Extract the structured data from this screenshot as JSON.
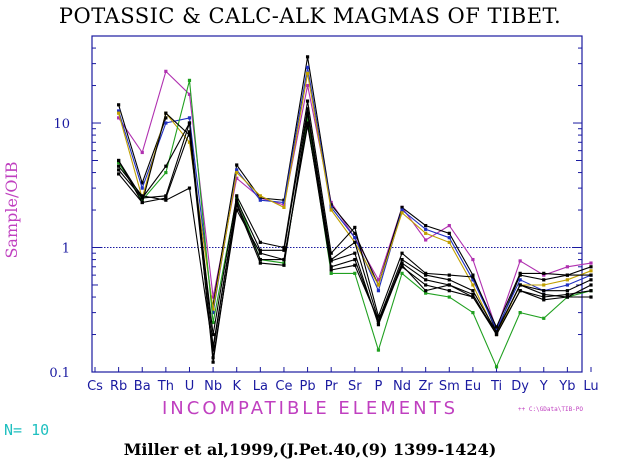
{
  "title": "POTASSIC & CALC-ALK MAGMAS OF TIBET.",
  "citation": "Miller et al,1999,(J.Pet.40,(9) 1399-1424)",
  "count": {
    "label": "N=",
    "value": "10"
  },
  "file_path": "++ C:\\GData\\TIB-PO",
  "colors": {
    "axis": "#1a1aa0",
    "label": "#c040c0",
    "count": "#20c0c0"
  },
  "chart_data": {
    "type": "line",
    "title": "POTASSIC & CALC-ALK MAGMAS OF TIBET.",
    "xlabel": "INCOMPATIBLE ELEMENTS",
    "ylabel": "Sample/OIB",
    "yscale": "log",
    "ylim": [
      0.1,
      50
    ],
    "yticks": [
      0.1,
      1,
      10
    ],
    "ytick_labels": [
      "0.1",
      "1",
      "10"
    ],
    "reference_line": 1,
    "categories": [
      "Cs",
      "Rb",
      "Ba",
      "Th",
      "U",
      "Nb",
      "K",
      "La",
      "Ce",
      "Pb",
      "Pr",
      "Sr",
      "P",
      "Nd",
      "Zr",
      "Sm",
      "Eu",
      "Ti",
      "Dy",
      "Y",
      "Yb",
      "Lu"
    ],
    "series": [
      {
        "color": "#b030b0",
        "values": [
          null,
          11,
          5.8,
          26,
          17,
          0.4,
          3.6,
          2.5,
          2.2,
          20,
          2.3,
          1.2,
          0.55,
          2.1,
          1.15,
          1.5,
          0.8,
          0.22,
          0.78,
          0.6,
          0.7,
          0.75
        ]
      },
      {
        "color": "#000000",
        "values": [
          null,
          14,
          3.3,
          11,
          null,
          0.35,
          4.6,
          2.5,
          2.4,
          34,
          2.2,
          1.3,
          0.5,
          2.1,
          1.5,
          1.3,
          0.6,
          0.21,
          0.6,
          0.55,
          0.6,
          0.7
        ]
      },
      {
        "color": "#2030c0",
        "values": [
          null,
          12.5,
          3,
          10,
          11,
          0.3,
          4.2,
          2.4,
          2.3,
          28,
          2.1,
          1.2,
          0.45,
          2.0,
          1.4,
          1.2,
          0.55,
          0.22,
          0.55,
          0.45,
          0.5,
          0.6
        ]
      },
      {
        "color": "#c0a000",
        "values": [
          null,
          12,
          2.5,
          12,
          7,
          0.32,
          4.0,
          2.6,
          2.1,
          25,
          2.0,
          1.1,
          0.5,
          1.9,
          1.3,
          1.1,
          0.5,
          0.2,
          0.5,
          0.5,
          0.55,
          0.65
        ]
      },
      {
        "color": "#20a020",
        "values": [
          null,
          4.8,
          2.4,
          4,
          22,
          0.25,
          2.5,
          0.8,
          0.75,
          11,
          0.62,
          0.62,
          0.15,
          0.62,
          0.43,
          0.4,
          0.3,
          0.11,
          0.3,
          0.27,
          0.4,
          0.45
        ]
      },
      {
        "color": "#000000",
        "values": [
          null,
          5,
          2.3,
          12,
          8,
          0.2,
          2.6,
          1.1,
          1.0,
          15,
          0.9,
          1.45,
          0.28,
          0.9,
          0.62,
          0.6,
          0.58,
          0.23,
          0.62,
          0.62,
          0.6,
          0.6
        ]
      },
      {
        "color": "#000000",
        "values": [
          null,
          4.5,
          2.6,
          2.4,
          3,
          0.15,
          2.4,
          0.95,
          0.95,
          13,
          0.8,
          1.1,
          0.26,
          0.8,
          0.6,
          0.55,
          0.45,
          0.21,
          0.5,
          0.45,
          0.45,
          0.55
        ]
      },
      {
        "color": "#000000",
        "values": [
          null,
          3.9,
          2.3,
          2.5,
          8.5,
          0.13,
          2.0,
          0.9,
          0.8,
          9.5,
          0.78,
          0.9,
          0.24,
          0.72,
          0.45,
          0.5,
          0.42,
          0.2,
          0.45,
          0.38,
          0.4,
          0.4
        ]
      },
      {
        "color": "#000000",
        "values": [
          null,
          5,
          2.5,
          4.5,
          10,
          0.12,
          2.2,
          0.75,
          0.72,
          12,
          0.7,
          0.8,
          0.25,
          0.75,
          0.55,
          0.5,
          0.4,
          0.21,
          0.5,
          0.42,
          0.4,
          0.5
        ]
      },
      {
        "color": "#000000",
        "values": [
          null,
          4.2,
          2.5,
          2.6,
          10,
          0.16,
          2.3,
          0.8,
          0.8,
          10,
          0.66,
          0.72,
          0.26,
          0.7,
          0.5,
          0.45,
          0.4,
          0.2,
          0.45,
          0.4,
          0.42,
          0.45
        ]
      }
    ]
  }
}
